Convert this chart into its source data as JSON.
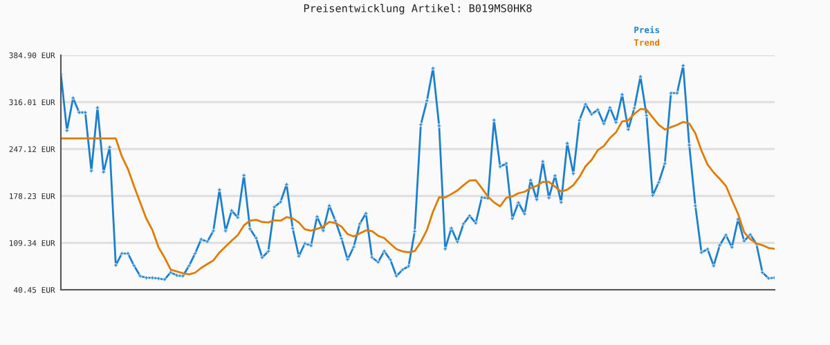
{
  "chart_data": {
    "type": "line",
    "title": "Preisentwicklung Artikel: B019MS0HK8",
    "categories": [
      null,
      null,
      null,
      null,
      null,
      null,
      null,
      null,
      null,
      null,
      null,
      null,
      null,
      null,
      null,
      null,
      null,
      null,
      null,
      null,
      null,
      null,
      null,
      null,
      null,
      null,
      null,
      null,
      null,
      null,
      null,
      null,
      null,
      null,
      null,
      null,
      null,
      null,
      null,
      null,
      null,
      null,
      null,
      null,
      null,
      null,
      null,
      null,
      null,
      null,
      null,
      null,
      null,
      null,
      null,
      null,
      null,
      null,
      null,
      null,
      null,
      null,
      null,
      null,
      null,
      null,
      null,
      null,
      null,
      null,
      null,
      null,
      null,
      null,
      null,
      null,
      null,
      null,
      null,
      null,
      null,
      null,
      null,
      null,
      null,
      null,
      null,
      null,
      null,
      null,
      null,
      null,
      null,
      null,
      null,
      null,
      null,
      null,
      null,
      null,
      null,
      null,
      null,
      null,
      null,
      null,
      null,
      null,
      null,
      null,
      null,
      null,
      null,
      null,
      null,
      null,
      null,
      null
    ],
    "series": [
      {
        "name": "Preis",
        "color": "#1a7fcf",
        "marker": "cross",
        "values": [
          357.2,
          274.2,
          322.1,
          300.8,
          300.8,
          215.0,
          307.9,
          213.4,
          249.9,
          76.6,
          93.8,
          93.8,
          75.9,
          60.7,
          58.0,
          58.0,
          57.0,
          55.6,
          66.1,
          61.7,
          60.7,
          75.6,
          93.8,
          114.7,
          111.1,
          126.9,
          187.4,
          126.9,
          156.7,
          146.5,
          208.6,
          129.9,
          116.4,
          87.8,
          96.9,
          162.0,
          169.4,
          195.2,
          130.6,
          89.8,
          108.6,
          105.3,
          147.8,
          127.3,
          164.0,
          141.8,
          115.7,
          85.0,
          103.3,
          137.4,
          152.6,
          88.1,
          81.0,
          97.2,
          84.7,
          60.7,
          69.8,
          75.2,
          126.3,
          282.9,
          318.0,
          365.7,
          281.3,
          100.5,
          130.9,
          110.7,
          137.4,
          149.2,
          138.4,
          176.2,
          174.9,
          289.7,
          221.1,
          226.1,
          145.1,
          168.4,
          151.9,
          201.5,
          172.9,
          228.9,
          175.5,
          207.9,
          168.8,
          255.5,
          211.0,
          289.4,
          313.0,
          298.1,
          304.9,
          284.3,
          307.9,
          286.3,
          327.2,
          275.8,
          307.2,
          353.5,
          296.4,
          178.9,
          198.2,
          225.8,
          329.2,
          329.2,
          369.7,
          252.9,
          163.7,
          95.2,
          100.2,
          75.6,
          106.0,
          120.8,
          103.0,
          144.1,
          112.1,
          121.5,
          108.0,
          65.8,
          57.4,
          58.4
        ]
      },
      {
        "name": "Trend",
        "color": "#e07b00",
        "marker": "none",
        "values": [
          262.6,
          262.6,
          262.6,
          262.6,
          262.6,
          262.6,
          262.6,
          262.6,
          262.6,
          262.6,
          236.3,
          217.7,
          192.4,
          168.8,
          145.1,
          128.3,
          103.0,
          87.8,
          70.1,
          67.5,
          64.8,
          63.1,
          65.5,
          72.6,
          78.2,
          83.7,
          95.2,
          104.0,
          112.7,
          120.8,
          135.0,
          141.8,
          143.1,
          140.0,
          139.4,
          142.5,
          141.8,
          147.1,
          145.1,
          139.4,
          129.3,
          127.3,
          129.9,
          133.3,
          140.0,
          138.4,
          133.3,
          122.2,
          118.8,
          123.2,
          127.6,
          126.6,
          119.8,
          116.4,
          108.0,
          100.2,
          96.9,
          95.5,
          97.2,
          110.7,
          128.3,
          155.2,
          176.2,
          176.2,
          180.9,
          186.3,
          194.1,
          200.8,
          201.5,
          189.7,
          177.2,
          168.8,
          163.0,
          175.5,
          177.5,
          182.3,
          184.3,
          189.7,
          193.1,
          198.8,
          198.8,
          191.7,
          184.6,
          187.4,
          194.1,
          205.9,
          221.8,
          231.2,
          245.4,
          251.5,
          263.3,
          271.8,
          287.6,
          289.4,
          298.8,
          305.9,
          304.9,
          293.7,
          282.6,
          275.8,
          279.2,
          282.6,
          286.9,
          284.6,
          270.1,
          244.8,
          224.5,
          212.7,
          203.3,
          193.1,
          172.2,
          151.9,
          124.9,
          114.7,
          108.6,
          106.0,
          101.9,
          100.5
        ]
      }
    ],
    "ylim": [
      40.45,
      384.9
    ],
    "yticks": [
      {
        "value": 40.45,
        "label": "40.45 EUR"
      },
      {
        "value": 109.34,
        "label": "109.34 EUR"
      },
      {
        "value": 178.23,
        "label": "178.23 EUR"
      },
      {
        "value": 247.12,
        "label": "247.12 EUR"
      },
      {
        "value": 316.01,
        "label": "316.01 EUR"
      },
      {
        "value": 384.9,
        "label": "384.90 EUR"
      }
    ],
    "grid": "y",
    "legend": "top right",
    "tick_labels": "y",
    "line_style": "solid"
  }
}
